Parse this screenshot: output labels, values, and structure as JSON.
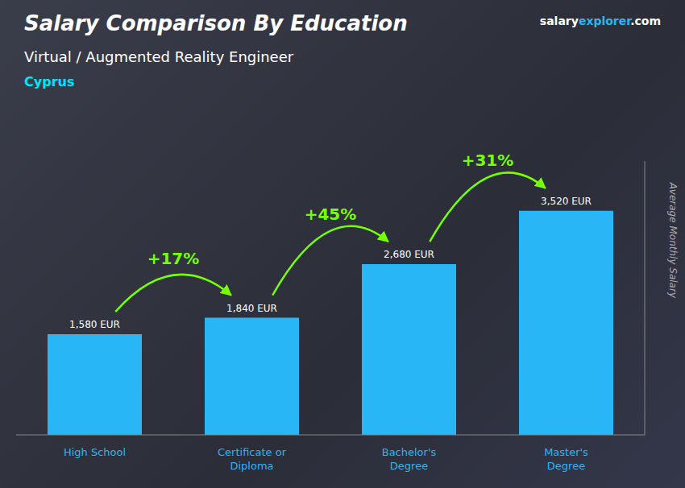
{
  "chart_data": {
    "type": "bar",
    "title": "Salary Comparison By Education",
    "subtitle": "Virtual / Augmented Reality Engineer",
    "country": "Cyprus",
    "website": [
      "salary",
      "explorer",
      ".com"
    ],
    "categories": [
      "High School",
      "Certificate or\nDiploma",
      "Bachelor's\nDegree",
      "Master's\nDegree"
    ],
    "values": [
      1580,
      1840,
      2680,
      3520
    ],
    "value_labels": [
      "1,580 EUR",
      "1,840 EUR",
      "2,680 EUR",
      "3,520 EUR"
    ],
    "data_labels": true,
    "annotations": [
      "+17%",
      "+45%",
      "+31%"
    ],
    "ylabel": "Average Monthly Salary",
    "color": "#29b6f6",
    "ylim": [
      0,
      4300
    ],
    "tick_labels": "x",
    "grid": false
  }
}
